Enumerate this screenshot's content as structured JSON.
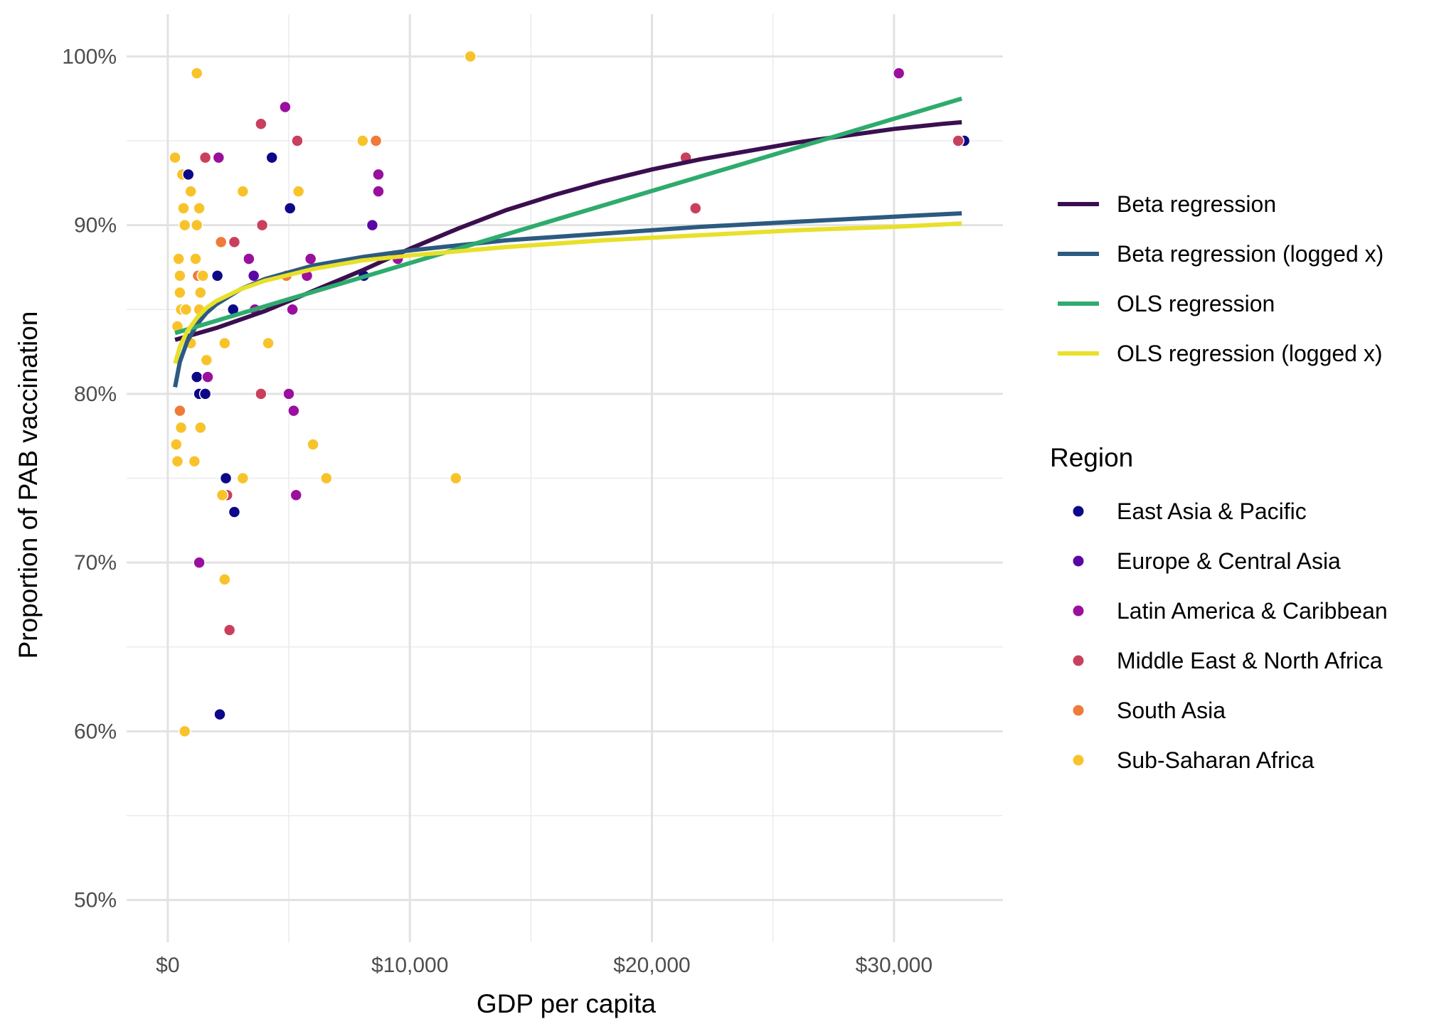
{
  "chart_data": {
    "type": "scatter",
    "xlabel": "GDP per capita",
    "ylabel": "Proportion of PAB vaccination",
    "xlim": [
      -1700,
      34500
    ],
    "ylim": [
      0.475,
      1.025
    ],
    "x_ticks": [
      0,
      10000,
      20000,
      30000
    ],
    "x_tick_labels": [
      "$0",
      "$10,000",
      "$20,000",
      "$30,000"
    ],
    "y_ticks": [
      0.5,
      0.6,
      0.7,
      0.8,
      0.9,
      1.0
    ],
    "y_tick_labels": [
      "50%",
      "60%",
      "70%",
      "80%",
      "90%",
      "100%"
    ],
    "grid": true,
    "line_legend": {
      "placement": "right",
      "items": [
        {
          "name": "Beta regression",
          "color": "#3b0f4f"
        },
        {
          "name": "Beta regression (logged x)",
          "color": "#2c5a80"
        },
        {
          "name": "OLS regression",
          "color": "#2eab6e"
        },
        {
          "name": "OLS regression (logged x)",
          "color": "#e8e02a"
        }
      ]
    },
    "point_legend": {
      "title": "Region",
      "placement": "right",
      "items": [
        {
          "name": "East Asia & Pacific",
          "color": "#0d0887"
        },
        {
          "name": "Europe & Central Asia",
          "color": "#5a06a5"
        },
        {
          "name": "Latin America & Caribbean",
          "color": "#9a0f9d"
        },
        {
          "name": "Middle East & North Africa",
          "color": "#c9405e"
        },
        {
          "name": "South Asia",
          "color": "#ee7b3a"
        },
        {
          "name": "Sub-Saharan Africa",
          "color": "#f8c32a"
        }
      ]
    },
    "lines": [
      {
        "name": "Beta regression",
        "color": "#3b0f4f",
        "x": [
          300,
          2000,
          4000,
          6000,
          8000,
          10000,
          12000,
          14000,
          16000,
          18000,
          20000,
          22000,
          24000,
          26000,
          28000,
          30000,
          32000,
          32800
        ],
        "y": [
          0.832,
          0.839,
          0.849,
          0.861,
          0.873,
          0.886,
          0.898,
          0.909,
          0.918,
          0.926,
          0.933,
          0.939,
          0.944,
          0.949,
          0.953,
          0.957,
          0.96,
          0.961
        ]
      },
      {
        "name": "Beta regression (logged x)",
        "color": "#2c5a80",
        "x": [
          300,
          500,
          800,
          1200,
          1600,
          2000,
          3000,
          4000,
          6000,
          8000,
          10000,
          14000,
          18000,
          22000,
          26000,
          30000,
          32800
        ],
        "y": [
          0.804,
          0.819,
          0.831,
          0.841,
          0.848,
          0.853,
          0.862,
          0.868,
          0.876,
          0.881,
          0.885,
          0.891,
          0.895,
          0.899,
          0.902,
          0.905,
          0.907
        ]
      },
      {
        "name": "OLS regression",
        "color": "#2eab6e",
        "x": [
          300,
          32800
        ],
        "y": [
          0.836,
          0.975
        ]
      },
      {
        "name": "OLS regression (logged x)",
        "color": "#e8e02a",
        "x": [
          300,
          500,
          800,
          1200,
          1600,
          2000,
          3000,
          4000,
          6000,
          8000,
          10000,
          14000,
          18000,
          22000,
          26000,
          30000,
          32800
        ],
        "y": [
          0.818,
          0.828,
          0.837,
          0.845,
          0.851,
          0.855,
          0.862,
          0.867,
          0.874,
          0.879,
          0.882,
          0.887,
          0.891,
          0.894,
          0.897,
          0.899,
          0.901
        ]
      }
    ],
    "points": [
      {
        "region": "Sub-Saharan Africa",
        "x": 1200,
        "y": 0.99
      },
      {
        "region": "Sub-Saharan Africa",
        "x": 12500,
        "y": 1.0
      },
      {
        "region": "Sub-Saharan Africa",
        "x": 300,
        "y": 0.94
      },
      {
        "region": "Sub-Saharan Africa",
        "x": 600,
        "y": 0.93
      },
      {
        "region": "East Asia & Pacific",
        "x": 850,
        "y": 0.93
      },
      {
        "region": "Sub-Saharan Africa",
        "x": 950,
        "y": 0.92
      },
      {
        "region": "Sub-Saharan Africa",
        "x": 650,
        "y": 0.91
      },
      {
        "region": "Sub-Saharan Africa",
        "x": 1300,
        "y": 0.91
      },
      {
        "region": "Sub-Saharan Africa",
        "x": 700,
        "y": 0.9
      },
      {
        "region": "Sub-Saharan Africa",
        "x": 1200,
        "y": 0.9
      },
      {
        "region": "Sub-Saharan Africa",
        "x": 450,
        "y": 0.88
      },
      {
        "region": "Sub-Saharan Africa",
        "x": 1150,
        "y": 0.88
      },
      {
        "region": "Sub-Saharan Africa",
        "x": 500,
        "y": 0.87
      },
      {
        "region": "South Asia",
        "x": 1250,
        "y": 0.87
      },
      {
        "region": "Sub-Saharan Africa",
        "x": 1450,
        "y": 0.87
      },
      {
        "region": "Sub-Saharan Africa",
        "x": 500,
        "y": 0.86
      },
      {
        "region": "Sub-Saharan Africa",
        "x": 1350,
        "y": 0.86
      },
      {
        "region": "Sub-Saharan Africa",
        "x": 550,
        "y": 0.85
      },
      {
        "region": "Sub-Saharan Africa",
        "x": 750,
        "y": 0.85
      },
      {
        "region": "Sub-Saharan Africa",
        "x": 1300,
        "y": 0.85
      },
      {
        "region": "Sub-Saharan Africa",
        "x": 400,
        "y": 0.84
      },
      {
        "region": "Sub-Saharan Africa",
        "x": 950,
        "y": 0.83
      },
      {
        "region": "Sub-Saharan Africa",
        "x": 1600,
        "y": 0.82
      },
      {
        "region": "East Asia & Pacific",
        "x": 1200,
        "y": 0.81
      },
      {
        "region": "Latin America & Caribbean",
        "x": 1650,
        "y": 0.81
      },
      {
        "region": "East Asia & Pacific",
        "x": 1300,
        "y": 0.8
      },
      {
        "region": "East Asia & Pacific",
        "x": 1550,
        "y": 0.8
      },
      {
        "region": "South Asia",
        "x": 500,
        "y": 0.79
      },
      {
        "region": "Sub-Saharan Africa",
        "x": 550,
        "y": 0.78
      },
      {
        "region": "Sub-Saharan Africa",
        "x": 1350,
        "y": 0.78
      },
      {
        "region": "Sub-Saharan Africa",
        "x": 350,
        "y": 0.77
      },
      {
        "region": "Sub-Saharan Africa",
        "x": 400,
        "y": 0.76
      },
      {
        "region": "Sub-Saharan Africa",
        "x": 1100,
        "y": 0.76
      },
      {
        "region": "East Asia & Pacific",
        "x": 2400,
        "y": 0.75
      },
      {
        "region": "Sub-Saharan Africa",
        "x": 3100,
        "y": 0.75
      },
      {
        "region": "Middle East & North Africa",
        "x": 2450,
        "y": 0.74
      },
      {
        "region": "Sub-Saharan Africa",
        "x": 2250,
        "y": 0.74
      },
      {
        "region": "East Asia & Pacific",
        "x": 2750,
        "y": 0.73
      },
      {
        "region": "Latin America & Caribbean",
        "x": 1300,
        "y": 0.7
      },
      {
        "region": "Sub-Saharan Africa",
        "x": 2350,
        "y": 0.69
      },
      {
        "region": "Middle East & North Africa",
        "x": 2550,
        "y": 0.66
      },
      {
        "region": "East Asia & Pacific",
        "x": 2150,
        "y": 0.61
      },
      {
        "region": "Sub-Saharan Africa",
        "x": 700,
        "y": 0.6
      },
      {
        "region": "Latin America & Caribbean",
        "x": 2100,
        "y": 0.94
      },
      {
        "region": "Middle East & North Africa",
        "x": 1550,
        "y": 0.94
      },
      {
        "region": "Middle East & North Africa",
        "x": 3850,
        "y": 0.96
      },
      {
        "region": "Latin America & Caribbean",
        "x": 4850,
        "y": 0.97
      },
      {
        "region": "East Asia & Pacific",
        "x": 4300,
        "y": 0.94
      },
      {
        "region": "Middle East & North Africa",
        "x": 5350,
        "y": 0.95
      },
      {
        "region": "East Asia & Pacific",
        "x": 5050,
        "y": 0.91
      },
      {
        "region": "Sub-Saharan Africa",
        "x": 3100,
        "y": 0.92
      },
      {
        "region": "Sub-Saharan Africa",
        "x": 5400,
        "y": 0.92
      },
      {
        "region": "Middle East & North Africa",
        "x": 3900,
        "y": 0.9
      },
      {
        "region": "South Asia",
        "x": 2200,
        "y": 0.89
      },
      {
        "region": "Middle East & North Africa",
        "x": 2750,
        "y": 0.89
      },
      {
        "region": "Latin America & Caribbean",
        "x": 3350,
        "y": 0.88
      },
      {
        "region": "Latin America & Caribbean",
        "x": 5900,
        "y": 0.88
      },
      {
        "region": "East Asia & Pacific",
        "x": 2050,
        "y": 0.87
      },
      {
        "region": "Europe & Central Asia",
        "x": 3550,
        "y": 0.87
      },
      {
        "region": "South Asia",
        "x": 4900,
        "y": 0.87
      },
      {
        "region": "Latin America & Caribbean",
        "x": 5750,
        "y": 0.87
      },
      {
        "region": "East Asia & Pacific",
        "x": 2700,
        "y": 0.85
      },
      {
        "region": "Latin America & Caribbean",
        "x": 3600,
        "y": 0.85
      },
      {
        "region": "Latin America & Caribbean",
        "x": 5150,
        "y": 0.85
      },
      {
        "region": "Sub-Saharan Africa",
        "x": 2350,
        "y": 0.83
      },
      {
        "region": "Sub-Saharan Africa",
        "x": 4150,
        "y": 0.83
      },
      {
        "region": "Middle East & North Africa",
        "x": 3850,
        "y": 0.8
      },
      {
        "region": "Latin America & Caribbean",
        "x": 5000,
        "y": 0.8
      },
      {
        "region": "Latin America & Caribbean",
        "x": 5200,
        "y": 0.79
      },
      {
        "region": "Latin America & Caribbean",
        "x": 5300,
        "y": 0.74
      },
      {
        "region": "Sub-Saharan Africa",
        "x": 6000,
        "y": 0.77
      },
      {
        "region": "Sub-Saharan Africa",
        "x": 6550,
        "y": 0.75
      },
      {
        "region": "Sub-Saharan Africa",
        "x": 8050,
        "y": 0.95
      },
      {
        "region": "South Asia",
        "x": 8600,
        "y": 0.95
      },
      {
        "region": "Latin America & Caribbean",
        "x": 8700,
        "y": 0.93
      },
      {
        "region": "Latin America & Caribbean",
        "x": 8700,
        "y": 0.92
      },
      {
        "region": "Europe & Central Asia",
        "x": 8450,
        "y": 0.9
      },
      {
        "region": "East Asia & Pacific",
        "x": 8100,
        "y": 0.87
      },
      {
        "region": "Latin America & Caribbean",
        "x": 9500,
        "y": 0.88
      },
      {
        "region": "Sub-Saharan Africa",
        "x": 11900,
        "y": 0.75
      },
      {
        "region": "Middle East & North Africa",
        "x": 21400,
        "y": 0.94
      },
      {
        "region": "Middle East & North Africa",
        "x": 21800,
        "y": 0.91
      },
      {
        "region": "Latin America & Caribbean",
        "x": 30200,
        "y": 0.99
      },
      {
        "region": "East Asia & Pacific",
        "x": 32900,
        "y": 0.95
      },
      {
        "region": "Middle East & North Africa",
        "x": 32650,
        "y": 0.95
      }
    ]
  }
}
